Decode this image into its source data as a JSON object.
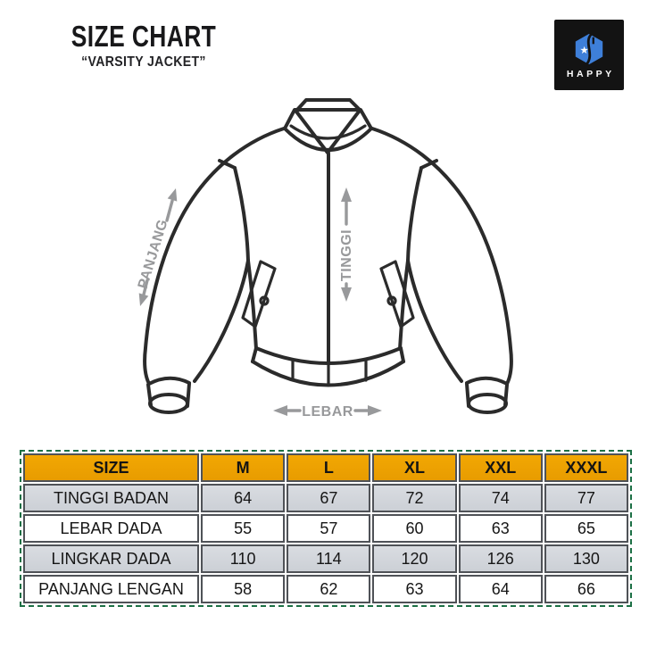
{
  "header": {
    "title": "SIZE CHART",
    "subtitle": "“VARSITY JACKET”"
  },
  "logo": {
    "brand": "HAPPY",
    "icon": "hexagon-star-logo",
    "bg_color": "#131313",
    "accent_color": "#3e7fd9"
  },
  "diagram": {
    "labels": {
      "panjang": "PANJANG",
      "tinggi": "TINGGI",
      "lebar": "LEBAR"
    },
    "line_color": "#2b2b2b",
    "arrow_color": "#98999b"
  },
  "table": {
    "columns": [
      "SIZE",
      "M",
      "L",
      "XL",
      "XXL",
      "XXXL"
    ],
    "rows": [
      {
        "label": "TINGGI BADAN",
        "values": [
          "64",
          "67",
          "72",
          "74",
          "77"
        ]
      },
      {
        "label": "LEBAR DADA",
        "values": [
          "55",
          "57",
          "60",
          "63",
          "65"
        ]
      },
      {
        "label": "LINGKAR DADA",
        "values": [
          "110",
          "114",
          "120",
          "126",
          "130"
        ]
      },
      {
        "label": "PANJANG LENGAN",
        "values": [
          "58",
          "62",
          "63",
          "64",
          "66"
        ]
      }
    ],
    "colors": {
      "header_bg": "#f2a703",
      "alt_row_bg": "#d9dce1",
      "row_bg": "#ffffff",
      "cell_border": "#4f5257",
      "selection_border": "#1c7045"
    }
  }
}
